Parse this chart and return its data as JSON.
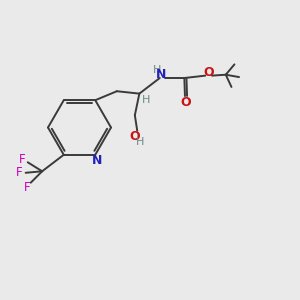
{
  "bg_color": "#eaeaea",
  "bond_color": "#3a3a3a",
  "n_color": "#2222bb",
  "o_color": "#cc1111",
  "f_color": "#cc00bb",
  "h_color": "#6a8a8a",
  "fig_width": 3.0,
  "fig_height": 3.0,
  "dpi": 100,
  "xlim": [
    0,
    10
  ],
  "ylim": [
    0,
    10
  ]
}
